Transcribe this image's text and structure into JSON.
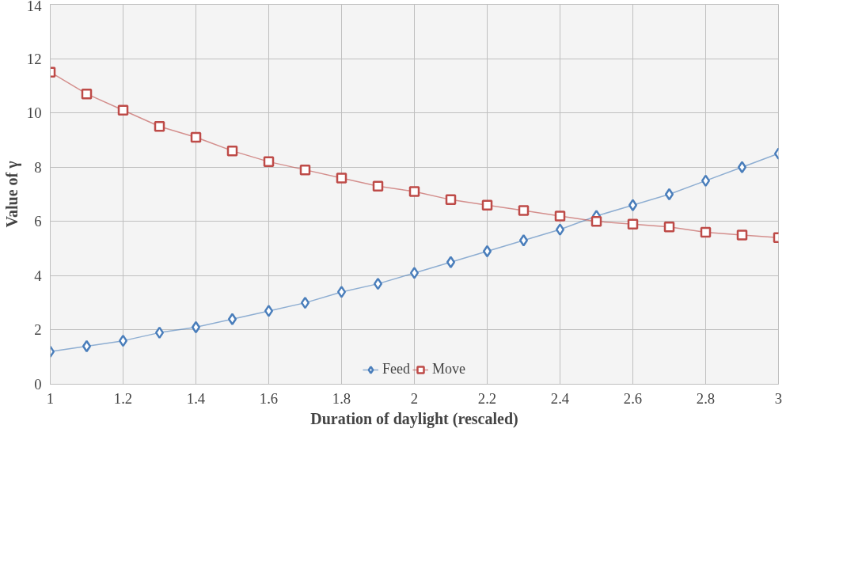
{
  "chart_data": {
    "type": "line",
    "xlabel": "Duration of daylight (rescaled)",
    "ylabel": "Value of γ",
    "x": [
      1,
      1.1,
      1.2,
      1.3,
      1.4,
      1.5,
      1.6,
      1.7,
      1.8,
      1.9,
      2,
      2.1,
      2.2,
      2.3,
      2.4,
      2.5,
      2.6,
      2.7,
      2.8,
      2.9,
      3
    ],
    "series": [
      {
        "name": "Feed",
        "color": "#4a7ebb",
        "marker": "diamond",
        "values": [
          1.2,
          1.4,
          1.6,
          1.9,
          2.1,
          2.4,
          2.7,
          3.0,
          3.4,
          3.7,
          4.1,
          4.5,
          4.9,
          5.3,
          5.7,
          6.2,
          6.6,
          7.0,
          7.5,
          8.0,
          8.5
        ]
      },
      {
        "name": "Move",
        "color": "#be4b48",
        "marker": "square",
        "values": [
          11.5,
          10.7,
          10.1,
          9.5,
          9.1,
          8.6,
          8.2,
          7.9,
          7.6,
          7.3,
          7.1,
          6.8,
          6.6,
          6.4,
          6.2,
          6.0,
          5.9,
          5.8,
          5.6,
          5.5,
          5.4
        ]
      }
    ],
    "xlim": [
      1,
      3
    ],
    "xticks": [
      1,
      1.2,
      1.4,
      1.6,
      1.8,
      2,
      2.2,
      2.4,
      2.6,
      2.8,
      3
    ],
    "ylim": [
      0,
      14
    ],
    "yticks": [
      0,
      2,
      4,
      6,
      8,
      10,
      12,
      14
    ],
    "grid": true,
    "legend": "bottom"
  }
}
